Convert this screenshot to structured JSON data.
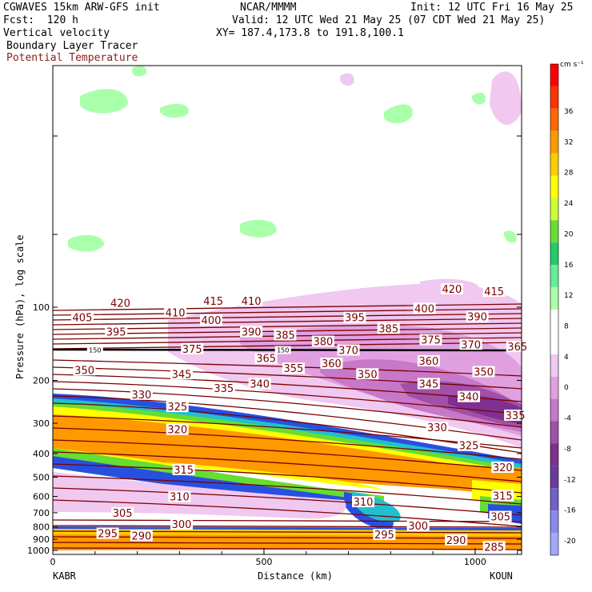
{
  "header": {
    "title_line": "CGWAVES 15km ARW-GFS init",
    "source": "NCAR/MMMM",
    "init": "Init: 12 UTC Fri 16 May 25",
    "fcst": "Fcst:  120 h",
    "valid": "Valid: 12 UTC Wed 21 May 25 (07 CDT Wed 21 May 25)",
    "field1": "Vertical velocity",
    "xy": "XY= 187.4,173.8 to 191.8,100.1",
    "field2": "Boundary Layer Tracer",
    "field3": "Potential Temperature"
  },
  "colors": {
    "theta": "#7a0000",
    "tracer": "#000000"
  },
  "chart_data": {
    "type": "heatmap",
    "xlabel": "Distance (km)",
    "ylabel": "Pressure (hPa), log scale",
    "xlim": [
      0,
      1110
    ],
    "x_ticks": [
      "0",
      "500",
      "1000"
    ],
    "y_ticks": [
      "100",
      "200",
      "300",
      "400",
      "500",
      "600",
      "700",
      "800",
      "900",
      "1000"
    ],
    "left_endpoint": "KABR",
    "right_endpoint": "KOUN",
    "colorbar": {
      "unit": "cm s⁻¹",
      "ticks": [
        "36",
        "32",
        "28",
        "24",
        "20",
        "16",
        "12",
        "8",
        "4",
        "0",
        "-4",
        "-8",
        "-12",
        "-16",
        "-20"
      ],
      "colors": [
        "#ff0000",
        "#ff3300",
        "#ff6600",
        "#ff9900",
        "#ffcc00",
        "#ffff00",
        "#ccff33",
        "#66dd33",
        "#22cc66",
        "#66ee99",
        "#aaffaa",
        "#ffffff",
        "#ffffff",
        "#f0c8f0",
        "#e0a0e0",
        "#c878c8",
        "#a050a8",
        "#803090",
        "#6a3aa0",
        "#7060c8",
        "#8888ee",
        "#a0a8ff"
      ]
    },
    "theta_labels": [
      {
        "v": "420",
        "x": 160,
        "p": 96
      },
      {
        "v": "415",
        "x": 380,
        "p": 94
      },
      {
        "v": "410",
        "x": 470,
        "p": 94
      },
      {
        "v": "420",
        "x": 945,
        "p": 84
      },
      {
        "v": "415",
        "x": 1045,
        "p": 86
      },
      {
        "v": "405",
        "x": 70,
        "p": 110
      },
      {
        "v": "410",
        "x": 290,
        "p": 105
      },
      {
        "v": "400",
        "x": 375,
        "p": 113
      },
      {
        "v": "395",
        "x": 715,
        "p": 110
      },
      {
        "v": "400",
        "x": 880,
        "p": 101
      },
      {
        "v": "390",
        "x": 1005,
        "p": 109
      },
      {
        "v": "395",
        "x": 150,
        "p": 126
      },
      {
        "v": "390",
        "x": 470,
        "p": 126
      },
      {
        "v": "385",
        "x": 550,
        "p": 130
      },
      {
        "v": "385",
        "x": 795,
        "p": 122
      },
      {
        "v": "380",
        "x": 640,
        "p": 138
      },
      {
        "v": "375",
        "x": 895,
        "p": 136
      },
      {
        "v": "370",
        "x": 990,
        "p": 142
      },
      {
        "v": "365",
        "x": 1100,
        "p": 145
      },
      {
        "v": "375",
        "x": 330,
        "p": 148
      },
      {
        "v": "370",
        "x": 700,
        "p": 150
      },
      {
        "v": "365",
        "x": 505,
        "p": 162
      },
      {
        "v": "360",
        "x": 660,
        "p": 170
      },
      {
        "v": "360",
        "x": 890,
        "p": 166
      },
      {
        "v": "350",
        "x": 75,
        "p": 181
      },
      {
        "v": "355",
        "x": 570,
        "p": 178
      },
      {
        "v": "345",
        "x": 305,
        "p": 188
      },
      {
        "v": "350",
        "x": 745,
        "p": 188
      },
      {
        "v": "350",
        "x": 1020,
        "p": 184
      },
      {
        "v": "340",
        "x": 490,
        "p": 206
      },
      {
        "v": "335",
        "x": 405,
        "p": 215
      },
      {
        "v": "345",
        "x": 890,
        "p": 206
      },
      {
        "v": "330",
        "x": 210,
        "p": 228
      },
      {
        "v": "340",
        "x": 985,
        "p": 233
      },
      {
        "v": "325",
        "x": 295,
        "p": 256
      },
      {
        "v": "335",
        "x": 1095,
        "p": 278
      },
      {
        "v": "330",
        "x": 910,
        "p": 312
      },
      {
        "v": "320",
        "x": 295,
        "p": 318
      },
      {
        "v": "325",
        "x": 985,
        "p": 370
      },
      {
        "v": "320",
        "x": 1065,
        "p": 455
      },
      {
        "v": "315",
        "x": 310,
        "p": 465
      },
      {
        "v": "315",
        "x": 1065,
        "p": 595
      },
      {
        "v": "310",
        "x": 300,
        "p": 600
      },
      {
        "v": "310",
        "x": 735,
        "p": 630
      },
      {
        "v": "305",
        "x": 165,
        "p": 700
      },
      {
        "v": "305",
        "x": 1060,
        "p": 725
      },
      {
        "v": "300",
        "x": 305,
        "p": 780
      },
      {
        "v": "300",
        "x": 865,
        "p": 790
      },
      {
        "v": "295",
        "x": 130,
        "p": 850
      },
      {
        "v": "290",
        "x": 210,
        "p": 868
      },
      {
        "v": "295",
        "x": 785,
        "p": 860
      },
      {
        "v": "290",
        "x": 955,
        "p": 905
      },
      {
        "v": "285",
        "x": 1045,
        "p": 965
      }
    ],
    "tracer_labels": [
      {
        "v": "150",
        "x": 100,
        "p": 150
      },
      {
        "v": "150",
        "x": 545,
        "p": 150
      }
    ]
  }
}
